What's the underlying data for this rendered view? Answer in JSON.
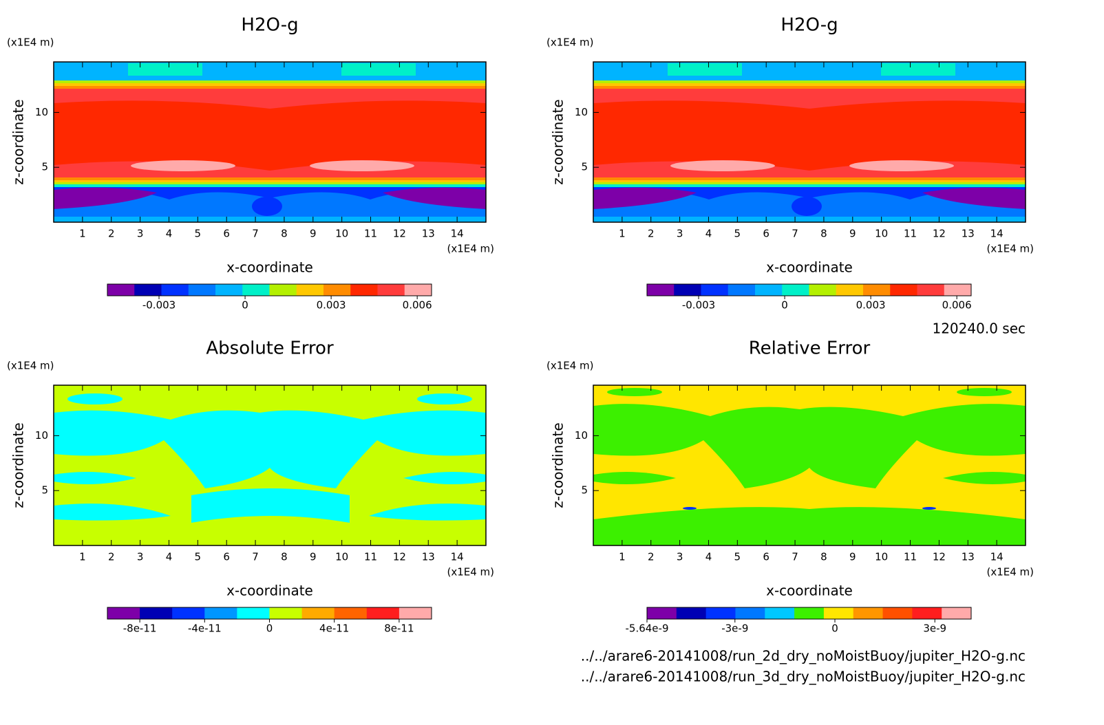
{
  "chart_data": [
    {
      "type": "contour",
      "title": "H2O-g",
      "xlabel": "x-coordinate",
      "ylabel": "z-coordinate",
      "xunit": "(x1E4 m)",
      "yunit": "(x1E4 m)",
      "xlim": [
        0,
        15
      ],
      "ylim": [
        0,
        14.6
      ],
      "xticks": [
        1,
        2,
        3,
        4,
        5,
        6,
        7,
        8,
        9,
        10,
        11,
        12,
        13,
        14
      ],
      "yticks": [
        5,
        10
      ],
      "colorbar": {
        "lim": [
          -0.0048,
          0.0065
        ],
        "ticks": [
          -0.003,
          0,
          0.003,
          0.006
        ],
        "colors": [
          "#7d00a8",
          "#0000b4",
          "#0032ff",
          "#0078ff",
          "#00b4ff",
          "#00f0c8",
          "#b4f000",
          "#ffc800",
          "#ff8c00",
          "#ff2800",
          "#ff3c3c",
          "#ffaaaa"
        ]
      }
    },
    {
      "type": "contour",
      "title": "H2O-g",
      "xlabel": "x-coordinate",
      "ylabel": "z-coordinate",
      "xunit": "(x1E4 m)",
      "yunit": "(x1E4 m)",
      "xlim": [
        0,
        15
      ],
      "ylim": [
        0,
        14.6
      ],
      "xticks": [
        1,
        2,
        3,
        4,
        5,
        6,
        7,
        8,
        9,
        10,
        11,
        12,
        13,
        14
      ],
      "yticks": [
        5,
        10
      ],
      "colorbar": {
        "lim": [
          -0.0048,
          0.0065
        ],
        "ticks": [
          -0.003,
          0,
          0.003,
          0.006
        ],
        "colors": [
          "#7d00a8",
          "#0000b4",
          "#0032ff",
          "#0078ff",
          "#00b4ff",
          "#00f0c8",
          "#b4f000",
          "#ffc800",
          "#ff8c00",
          "#ff2800",
          "#ff3c3c",
          "#ffaaaa"
        ]
      }
    },
    {
      "type": "contour",
      "title": "Absolute Error",
      "xlabel": "x-coordinate",
      "ylabel": "z-coordinate",
      "xunit": "(x1E4 m)",
      "yunit": "(x1E4 m)",
      "xlim": [
        0,
        15
      ],
      "ylim": [
        0,
        14.6
      ],
      "xticks": [
        1,
        2,
        3,
        4,
        5,
        6,
        7,
        8,
        9,
        10,
        11,
        12,
        13,
        14
      ],
      "yticks": [
        5,
        10
      ],
      "colorbar": {
        "lim": [
          -1e-10,
          1e-10
        ],
        "ticks": [
          -8e-11,
          -4e-11,
          0,
          4e-11,
          8e-11
        ],
        "colors": [
          "#7d00a8",
          "#0000b4",
          "#0032ff",
          "#0096ff",
          "#00ffff",
          "#c8ff00",
          "#ffaa00",
          "#ff6400",
          "#ff1e1e",
          "#ffaaaa"
        ]
      }
    },
    {
      "type": "contour",
      "title": "Relative Error",
      "xlabel": "x-coordinate",
      "ylabel": "z-coordinate",
      "xunit": "(x1E4 m)",
      "yunit": "(x1E4 m)",
      "xlim": [
        0,
        15
      ],
      "ylim": [
        0,
        14.6
      ],
      "xticks": [
        1,
        2,
        3,
        4,
        5,
        6,
        7,
        8,
        9,
        10,
        11,
        12,
        13,
        14
      ],
      "yticks": [
        5,
        10
      ],
      "colorbar": {
        "lim": [
          -5.64e-09,
          4.09e-09
        ],
        "ticks": [
          -5.64e-09,
          -3e-09,
          0,
          3e-09
        ],
        "colors": [
          "#7d00a8",
          "#0000b4",
          "#0032ff",
          "#0078ff",
          "#00c8ff",
          "#3cf000",
          "#ffe600",
          "#ff9600",
          "#ff5000",
          "#ff1e1e",
          "#ffaaaa"
        ]
      }
    }
  ],
  "footer": {
    "time": "120240.0 sec",
    "files": [
      "../../arare6-20141008/run_2d_dry_noMoistBuoy/jupiter_H2O-g.nc",
      "../../arare6-20141008/run_3d_dry_noMoistBuoy/jupiter_H2O-g.nc"
    ]
  }
}
